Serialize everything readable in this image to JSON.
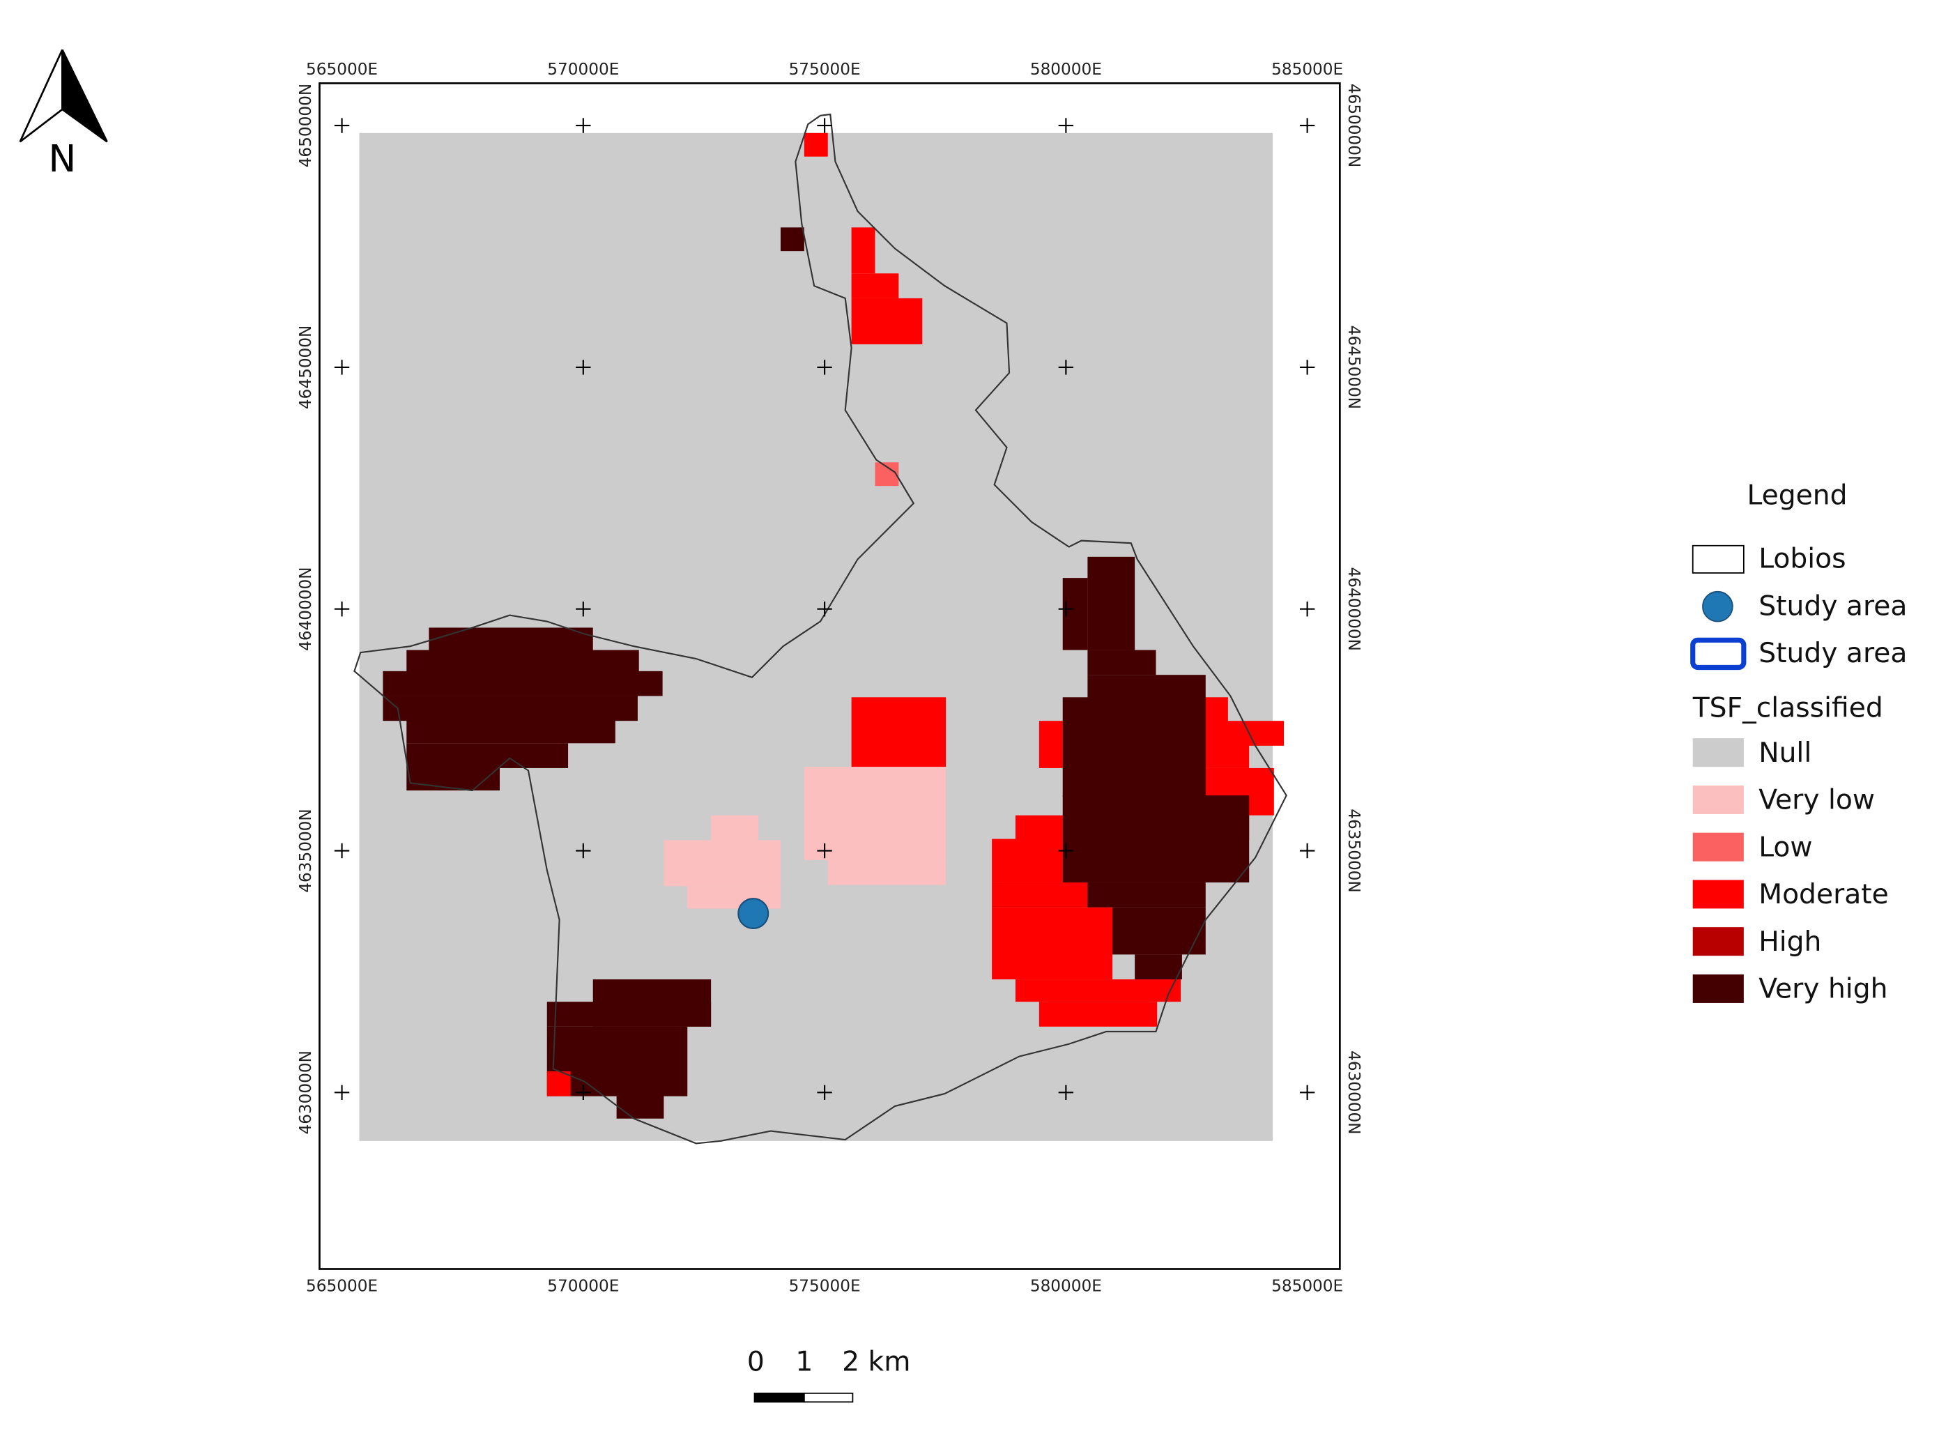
{
  "north_label": "N",
  "grid": {
    "x_labels": [
      "565000E",
      "570000E",
      "575000E",
      "580000E",
      "585000E"
    ],
    "y_labels": [
      "4650000N",
      "4645000N",
      "4640000N",
      "4635000N",
      "4630000N"
    ]
  },
  "legend": {
    "title": "Legend",
    "layers": [
      "Lobios",
      "Study area",
      "Study area"
    ],
    "group_title": "TSF_classified",
    "classes": [
      {
        "label": "Null",
        "color": "#cccccc"
      },
      {
        "label": "Very low",
        "color": "#fcbfbf"
      },
      {
        "label": "Low",
        "color": "#fb6161"
      },
      {
        "label": "Moderate",
        "color": "#fe0000"
      },
      {
        "label": "High",
        "color": "#b80000"
      },
      {
        "label": "Very high",
        "color": "#440000"
      }
    ]
  },
  "scale_bar": {
    "labels": [
      "0",
      "1",
      "2 km"
    ]
  }
}
